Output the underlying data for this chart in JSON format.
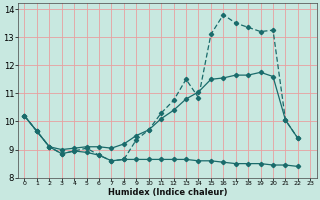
{
  "xlabel": "Humidex (Indice chaleur)",
  "bg_color": "#c8e8e0",
  "grid_color": "#e8a0a0",
  "line_color": "#1a6b6b",
  "xlim": [
    -0.5,
    23.5
  ],
  "ylim": [
    8,
    14.2
  ],
  "xticks": [
    0,
    1,
    2,
    3,
    4,
    5,
    6,
    7,
    8,
    9,
    10,
    11,
    12,
    13,
    14,
    15,
    16,
    17,
    18,
    19,
    20,
    21,
    22,
    23
  ],
  "yticks": [
    8,
    9,
    10,
    11,
    12,
    13,
    14
  ],
  "line1_x": [
    0,
    1,
    2,
    3,
    4,
    5,
    6,
    7,
    8,
    9,
    10,
    11,
    12,
    13,
    14,
    15,
    16,
    17,
    18,
    19,
    20,
    21,
    22
  ],
  "line1_y": [
    10.2,
    9.65,
    9.1,
    8.85,
    8.95,
    9.05,
    8.8,
    8.6,
    8.65,
    9.35,
    9.7,
    10.3,
    10.75,
    11.5,
    10.85,
    13.1,
    13.8,
    13.5,
    13.35,
    13.2,
    13.25,
    10.05,
    9.4
  ],
  "line2_x": [
    0,
    1,
    2,
    3,
    4,
    5,
    6,
    7,
    8,
    9,
    10,
    11,
    12,
    13,
    14,
    15,
    16,
    17,
    18,
    19,
    20,
    21,
    22
  ],
  "line2_y": [
    10.2,
    9.65,
    9.1,
    9.0,
    9.05,
    9.1,
    9.1,
    9.05,
    9.2,
    9.5,
    9.7,
    10.1,
    10.4,
    10.8,
    11.05,
    11.5,
    11.55,
    11.65,
    11.65,
    11.75,
    11.6,
    10.05,
    9.4
  ],
  "line3_x": [
    0,
    1,
    2,
    3,
    4,
    5,
    6,
    7,
    8,
    9,
    10,
    11,
    12,
    13,
    14,
    15,
    16,
    17,
    18,
    19,
    20,
    21,
    22
  ],
  "line3_y": [
    10.2,
    9.65,
    9.1,
    8.85,
    8.95,
    8.9,
    8.8,
    8.6,
    8.65,
    8.65,
    8.65,
    8.65,
    8.65,
    8.65,
    8.6,
    8.6,
    8.55,
    8.5,
    8.5,
    8.5,
    8.45,
    8.45,
    8.4
  ]
}
